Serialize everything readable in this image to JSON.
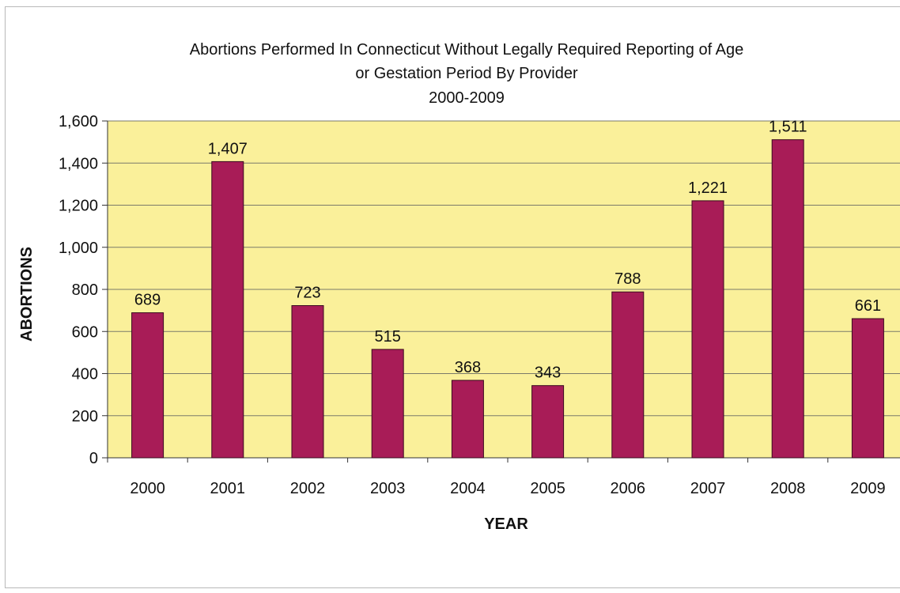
{
  "chart_data": {
    "type": "bar",
    "title_lines": [
      "Abortions Performed In Connecticut Without Legally Required Reporting of Age",
      "or Gestation Period By Provider",
      "2000-2009"
    ],
    "xlabel": "YEAR",
    "ylabel": "ABORTIONS",
    "categories": [
      "2000",
      "2001",
      "2002",
      "2003",
      "2004",
      "2005",
      "2006",
      "2007",
      "2008",
      "2009"
    ],
    "values": [
      689,
      1407,
      723,
      515,
      368,
      343,
      788,
      1221,
      1511,
      661
    ],
    "value_labels": [
      "689",
      "1,407",
      "723",
      "515",
      "368",
      "343",
      "788",
      "1,221",
      "1,511",
      "661"
    ],
    "ylim": [
      0,
      1600
    ],
    "y_ticks": [
      0,
      200,
      400,
      600,
      800,
      1000,
      1200,
      1400,
      1600
    ],
    "y_tick_labels": [
      "0",
      "200",
      "400",
      "600",
      "800",
      "1,000",
      "1,200",
      "1,400",
      "1,600"
    ],
    "grid": true,
    "legend": "none",
    "colors": {
      "plot_background": "#faf09a",
      "bar_fill": "#a81c57",
      "bar_edge": "#3a0a1e",
      "gridline": "#7a7a6a"
    }
  }
}
